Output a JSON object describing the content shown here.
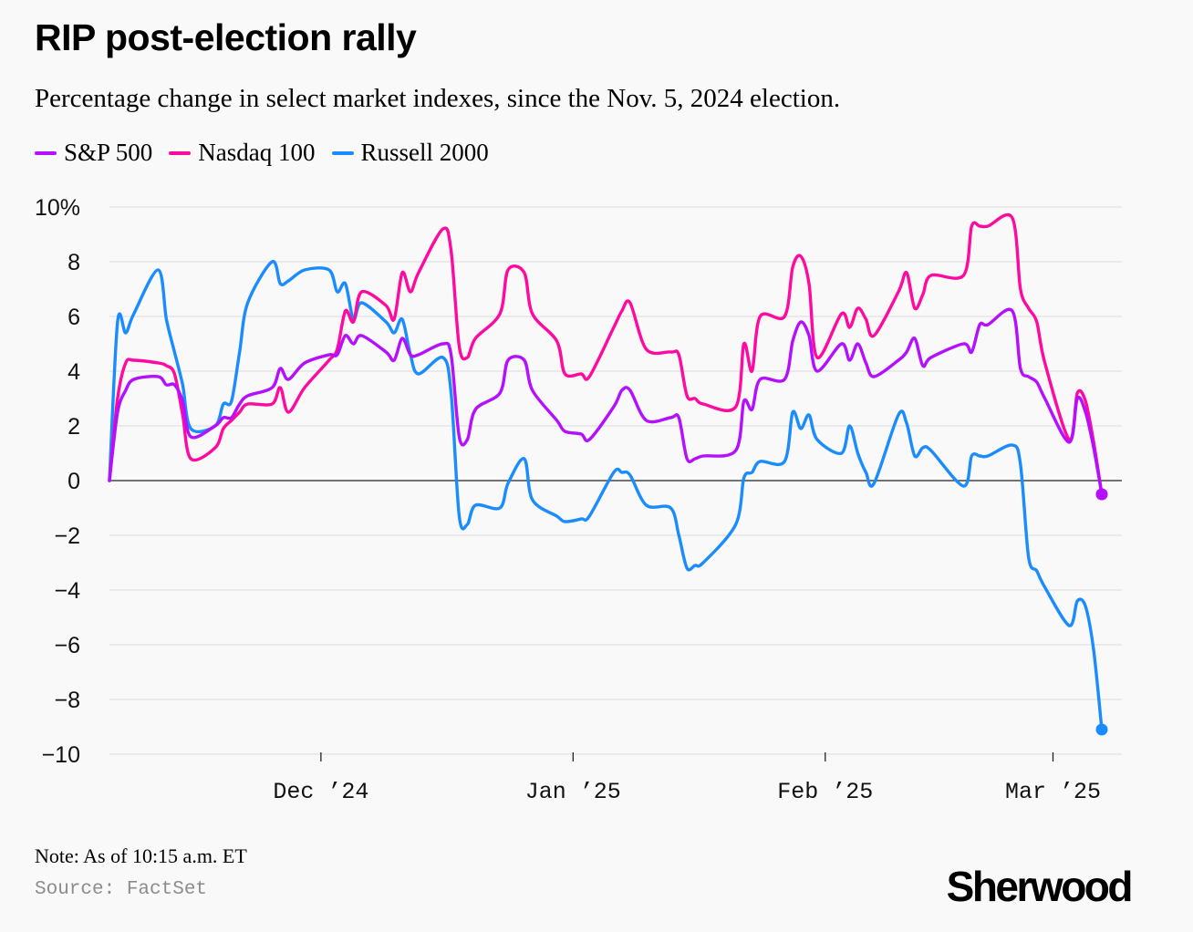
{
  "header": {
    "title": "RIP post-election rally",
    "subtitle": "Percentage change in select market indexes, since the Nov. 5, 2024 election."
  },
  "legend": [
    {
      "name": "S&P 500",
      "color": "#b40fff"
    },
    {
      "name": "Nasdaq 100",
      "color": "#ff0aa0"
    },
    {
      "name": "Russell 2000",
      "color": "#1a8cff"
    }
  ],
  "footer": {
    "note": "Note: As of 10:15 a.m. ET",
    "source": "Source: FactSet",
    "brand": "Sherwood"
  },
  "chart_data": {
    "type": "line",
    "x_type": "date",
    "xlim": [
      "2024-11-05",
      "2025-03-07"
    ],
    "ylim": [
      -10,
      10
    ],
    "yticks": [
      10,
      8,
      6,
      4,
      2,
      0,
      -2,
      -4,
      -6,
      -8,
      -10
    ],
    "ytick_labels": [
      "10%",
      "8",
      "6",
      "4",
      "2",
      "0",
      "−2",
      "−4",
      "−6",
      "−8",
      "−10"
    ],
    "xticks": [
      {
        "date": "2024-12-01",
        "label": "Dec ’24"
      },
      {
        "date": "2025-01-01",
        "label": "Jan ’25"
      },
      {
        "date": "2025-02-01",
        "label": "Feb ’25"
      },
      {
        "date": "2025-03-01",
        "label": "Mar ’25"
      }
    ],
    "grid": true,
    "legend_position": "top-left",
    "end_markers": true,
    "series": [
      {
        "name": "S&P 500",
        "color": "#b40fff",
        "points": [
          [
            "2024-11-05",
            0
          ],
          [
            "2024-11-06",
            2.5
          ],
          [
            "2024-11-07",
            3.3
          ],
          [
            "2024-11-08",
            3.7
          ],
          [
            "2024-11-11",
            3.8
          ],
          [
            "2024-11-12",
            3.5
          ],
          [
            "2024-11-13",
            3.5
          ],
          [
            "2024-11-14",
            2.9
          ],
          [
            "2024-11-15",
            1.6
          ],
          [
            "2024-11-18",
            2.0
          ],
          [
            "2024-11-19",
            2.3
          ],
          [
            "2024-11-20",
            2.3
          ],
          [
            "2024-11-21",
            2.8
          ],
          [
            "2024-11-22",
            3.1
          ],
          [
            "2024-11-25",
            3.4
          ],
          [
            "2024-11-26",
            4.1
          ],
          [
            "2024-11-27",
            3.7
          ],
          [
            "2024-11-29",
            4.3
          ],
          [
            "2024-12-02",
            4.6
          ],
          [
            "2024-12-03",
            4.6
          ],
          [
            "2024-12-04",
            5.3
          ],
          [
            "2024-12-05",
            5.0
          ],
          [
            "2024-12-06",
            5.3
          ],
          [
            "2024-12-09",
            4.7
          ],
          [
            "2024-12-10",
            4.4
          ],
          [
            "2024-12-11",
            5.2
          ],
          [
            "2024-12-12",
            4.6
          ],
          [
            "2024-12-13",
            4.6
          ],
          [
            "2024-12-16",
            5.0
          ],
          [
            "2024-12-17",
            4.6
          ],
          [
            "2024-12-18",
            1.6
          ],
          [
            "2024-12-19",
            1.5
          ],
          [
            "2024-12-20",
            2.6
          ],
          [
            "2024-12-23",
            3.2
          ],
          [
            "2024-12-24",
            4.4
          ],
          [
            "2024-12-26",
            4.4
          ],
          [
            "2024-12-27",
            3.3
          ],
          [
            "2024-12-30",
            2.2
          ],
          [
            "2024-12-31",
            1.8
          ],
          [
            "2025-01-02",
            1.7
          ],
          [
            "2025-01-03",
            1.5
          ],
          [
            "2025-01-06",
            2.7
          ],
          [
            "2025-01-07",
            3.3
          ],
          [
            "2025-01-08",
            3.3
          ],
          [
            "2025-01-10",
            2.2
          ],
          [
            "2025-01-13",
            2.3
          ],
          [
            "2025-01-14",
            2.3
          ],
          [
            "2025-01-15",
            0.8
          ],
          [
            "2025-01-16",
            0.8
          ],
          [
            "2025-01-17",
            0.9
          ],
          [
            "2025-01-21",
            1.1
          ],
          [
            "2025-01-22",
            2.9
          ],
          [
            "2025-01-23",
            2.6
          ],
          [
            "2025-01-24",
            3.7
          ],
          [
            "2025-01-27",
            3.7
          ],
          [
            "2025-01-28",
            5.1
          ],
          [
            "2025-01-29",
            5.8
          ],
          [
            "2025-01-30",
            5.3
          ],
          [
            "2025-01-31",
            4.0
          ],
          [
            "2025-02-03",
            5.0
          ],
          [
            "2025-02-04",
            4.4
          ],
          [
            "2025-02-05",
            5.0
          ],
          [
            "2025-02-06",
            4.3
          ],
          [
            "2025-02-07",
            3.8
          ],
          [
            "2025-02-10",
            4.4
          ],
          [
            "2025-02-11",
            4.7
          ],
          [
            "2025-02-12",
            5.2
          ],
          [
            "2025-02-13",
            4.2
          ],
          [
            "2025-02-14",
            4.5
          ],
          [
            "2025-02-18",
            5.0
          ],
          [
            "2025-02-19",
            4.7
          ],
          [
            "2025-02-20",
            5.7
          ],
          [
            "2025-02-21",
            5.7
          ],
          [
            "2025-02-24",
            6.2
          ],
          [
            "2025-02-25",
            4.1
          ],
          [
            "2025-02-26",
            3.8
          ],
          [
            "2025-02-27",
            3.6
          ],
          [
            "2025-02-28",
            3.0
          ],
          [
            "2025-03-03",
            1.4
          ],
          [
            "2025-03-04",
            3.0
          ],
          [
            "2025-03-05",
            2.5
          ],
          [
            "2025-03-06",
            1.2
          ],
          [
            "2025-03-07",
            -0.5
          ]
        ]
      },
      {
        "name": "Nasdaq 100",
        "color": "#ff0aa0",
        "points": [
          [
            "2024-11-05",
            0
          ],
          [
            "2024-11-06",
            3.0
          ],
          [
            "2024-11-07",
            4.3
          ],
          [
            "2024-11-08",
            4.4
          ],
          [
            "2024-11-11",
            4.3
          ],
          [
            "2024-11-12",
            4.2
          ],
          [
            "2024-11-13",
            3.9
          ],
          [
            "2024-11-14",
            2.4
          ],
          [
            "2024-11-15",
            0.8
          ],
          [
            "2024-11-18",
            1.2
          ],
          [
            "2024-11-19",
            1.9
          ],
          [
            "2024-11-20",
            2.2
          ],
          [
            "2024-11-21",
            2.5
          ],
          [
            "2024-11-22",
            2.8
          ],
          [
            "2024-11-25",
            2.8
          ],
          [
            "2024-11-26",
            3.4
          ],
          [
            "2024-11-27",
            2.5
          ],
          [
            "2024-11-29",
            3.4
          ],
          [
            "2024-12-02",
            4.4
          ],
          [
            "2024-12-03",
            4.8
          ],
          [
            "2024-12-04",
            6.2
          ],
          [
            "2024-12-05",
            5.8
          ],
          [
            "2024-12-06",
            6.9
          ],
          [
            "2024-12-09",
            6.4
          ],
          [
            "2024-12-10",
            5.9
          ],
          [
            "2024-12-11",
            7.6
          ],
          [
            "2024-12-12",
            6.9
          ],
          [
            "2024-12-13",
            7.6
          ],
          [
            "2024-12-16",
            9.2
          ],
          [
            "2024-12-17",
            8.4
          ],
          [
            "2024-12-18",
            4.9
          ],
          [
            "2024-12-19",
            4.5
          ],
          [
            "2024-12-20",
            5.2
          ],
          [
            "2024-12-23",
            6.1
          ],
          [
            "2024-12-24",
            7.7
          ],
          [
            "2024-12-26",
            7.6
          ],
          [
            "2024-12-27",
            6.1
          ],
          [
            "2024-12-30",
            5.1
          ],
          [
            "2024-12-31",
            3.9
          ],
          [
            "2025-01-02",
            3.9
          ],
          [
            "2025-01-03",
            3.8
          ],
          [
            "2025-01-06",
            5.6
          ],
          [
            "2025-01-07",
            6.2
          ],
          [
            "2025-01-08",
            6.5
          ],
          [
            "2025-01-10",
            4.8
          ],
          [
            "2025-01-13",
            4.7
          ],
          [
            "2025-01-14",
            4.6
          ],
          [
            "2025-01-15",
            3.1
          ],
          [
            "2025-01-16",
            3.0
          ],
          [
            "2025-01-17",
            2.8
          ],
          [
            "2025-01-21",
            2.7
          ],
          [
            "2025-01-22",
            5.0
          ],
          [
            "2025-01-23",
            4.0
          ],
          [
            "2025-01-24",
            6.0
          ],
          [
            "2025-01-27",
            6.0
          ],
          [
            "2025-01-28",
            7.8
          ],
          [
            "2025-01-29",
            8.2
          ],
          [
            "2025-01-30",
            7.2
          ],
          [
            "2025-01-31",
            4.5
          ],
          [
            "2025-02-03",
            6.1
          ],
          [
            "2025-02-04",
            5.6
          ],
          [
            "2025-02-05",
            6.3
          ],
          [
            "2025-02-06",
            5.9
          ],
          [
            "2025-02-07",
            5.3
          ],
          [
            "2025-02-10",
            6.9
          ],
          [
            "2025-02-11",
            7.6
          ],
          [
            "2025-02-12",
            6.3
          ],
          [
            "2025-02-13",
            6.8
          ],
          [
            "2025-02-14",
            7.5
          ],
          [
            "2025-02-18",
            7.5
          ],
          [
            "2025-02-19",
            9.3
          ],
          [
            "2025-02-20",
            9.3
          ],
          [
            "2025-02-21",
            9.3
          ],
          [
            "2025-02-24",
            9.6
          ],
          [
            "2025-02-25",
            7.0
          ],
          [
            "2025-02-26",
            6.3
          ],
          [
            "2025-02-27",
            5.8
          ],
          [
            "2025-02-28",
            4.3
          ],
          [
            "2025-03-03",
            1.5
          ],
          [
            "2025-03-04",
            3.2
          ],
          [
            "2025-03-05",
            2.9
          ],
          [
            "2025-03-06",
            1.4
          ],
          [
            "2025-03-07",
            -0.5
          ]
        ]
      },
      {
        "name": "Russell 2000",
        "color": "#1a8cff",
        "points": [
          [
            "2024-11-05",
            0
          ],
          [
            "2024-11-06",
            5.8
          ],
          [
            "2024-11-07",
            5.4
          ],
          [
            "2024-11-08",
            6.1
          ],
          [
            "2024-11-11",
            7.7
          ],
          [
            "2024-11-12",
            5.9
          ],
          [
            "2024-11-13",
            4.7
          ],
          [
            "2024-11-14",
            3.5
          ],
          [
            "2024-11-15",
            1.9
          ],
          [
            "2024-11-18",
            2.0
          ],
          [
            "2024-11-19",
            2.8
          ],
          [
            "2024-11-20",
            2.9
          ],
          [
            "2024-11-21",
            4.7
          ],
          [
            "2024-11-22",
            6.5
          ],
          [
            "2024-11-25",
            8.0
          ],
          [
            "2024-11-26",
            7.2
          ],
          [
            "2024-11-27",
            7.3
          ],
          [
            "2024-11-29",
            7.7
          ],
          [
            "2024-12-02",
            7.7
          ],
          [
            "2024-12-03",
            6.9
          ],
          [
            "2024-12-04",
            7.2
          ],
          [
            "2024-12-05",
            5.9
          ],
          [
            "2024-12-06",
            6.5
          ],
          [
            "2024-12-09",
            5.8
          ],
          [
            "2024-12-10",
            5.4
          ],
          [
            "2024-12-11",
            5.9
          ],
          [
            "2024-12-12",
            4.6
          ],
          [
            "2024-12-13",
            3.9
          ],
          [
            "2024-12-16",
            4.5
          ],
          [
            "2024-12-17",
            3.2
          ],
          [
            "2024-12-18",
            -1.3
          ],
          [
            "2024-12-19",
            -1.6
          ],
          [
            "2024-12-20",
            -0.9
          ],
          [
            "2024-12-23",
            -1.0
          ],
          [
            "2024-12-24",
            -0.1
          ],
          [
            "2024-12-26",
            0.8
          ],
          [
            "2024-12-27",
            -0.7
          ],
          [
            "2024-12-30",
            -1.3
          ],
          [
            "2024-12-31",
            -1.5
          ],
          [
            "2025-01-02",
            -1.4
          ],
          [
            "2025-01-03",
            -1.3
          ],
          [
            "2025-01-06",
            0.3
          ],
          [
            "2025-01-07",
            0.3
          ],
          [
            "2025-01-08",
            0.2
          ],
          [
            "2025-01-10",
            -0.9
          ],
          [
            "2025-01-13",
            -1.0
          ],
          [
            "2025-01-14",
            -2.0
          ],
          [
            "2025-01-15",
            -3.2
          ],
          [
            "2025-01-16",
            -3.1
          ],
          [
            "2025-01-17",
            -3.0
          ],
          [
            "2025-01-21",
            -1.6
          ],
          [
            "2025-01-22",
            0.1
          ],
          [
            "2025-01-23",
            0.3
          ],
          [
            "2025-01-24",
            0.7
          ],
          [
            "2025-01-27",
            0.7
          ],
          [
            "2025-01-28",
            2.5
          ],
          [
            "2025-01-29",
            1.9
          ],
          [
            "2025-01-30",
            2.4
          ],
          [
            "2025-01-31",
            1.5
          ],
          [
            "2025-02-03",
            1.0
          ],
          [
            "2025-02-04",
            2.0
          ],
          [
            "2025-02-05",
            1.0
          ],
          [
            "2025-02-06",
            0.3
          ],
          [
            "2025-02-07",
            -0.1
          ],
          [
            "2025-02-10",
            2.4
          ],
          [
            "2025-02-11",
            2.1
          ],
          [
            "2025-02-12",
            0.9
          ],
          [
            "2025-02-13",
            1.2
          ],
          [
            "2025-02-14",
            1.1
          ],
          [
            "2025-02-18",
            -0.2
          ],
          [
            "2025-02-19",
            0.9
          ],
          [
            "2025-02-20",
            0.9
          ],
          [
            "2025-02-21",
            0.9
          ],
          [
            "2025-02-24",
            1.3
          ],
          [
            "2025-02-25",
            0.6
          ],
          [
            "2025-02-26",
            -2.8
          ],
          [
            "2025-02-27",
            -3.3
          ],
          [
            "2025-02-28",
            -3.9
          ],
          [
            "2025-03-03",
            -5.3
          ],
          [
            "2025-03-04",
            -4.4
          ],
          [
            "2025-03-05",
            -4.6
          ],
          [
            "2025-03-06",
            -6.2
          ],
          [
            "2025-03-07",
            -9.1
          ]
        ]
      }
    ]
  }
}
